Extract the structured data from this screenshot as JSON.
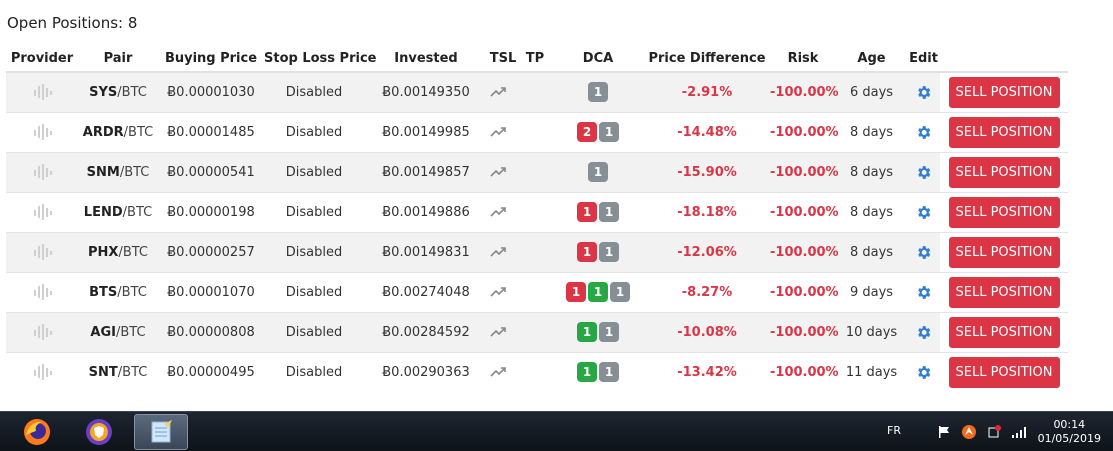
{
  "page": {
    "heading": "Open Positions: 8"
  },
  "table": {
    "headers": {
      "provider": "Provider",
      "pair": "Pair",
      "buying_price": "Buying Price",
      "stop_loss": "Stop Loss Price",
      "invested": "Invested",
      "tsl": "TSL",
      "tp": "TP",
      "dca": "DCA",
      "price_diff": "Price Difference",
      "risk": "Risk",
      "age": "Age",
      "edit": "Edit"
    },
    "sell_label": "SELL POSITION",
    "rows": [
      {
        "base": "SYS",
        "quote": "/BTC",
        "buying_price": "Ƀ0.00001030",
        "stop_loss": "Disabled",
        "invested": "Ƀ0.00149350",
        "dca": [
          {
            "text": "1",
            "color": "gray"
          }
        ],
        "price_diff": "-2.91%",
        "risk": "-100.00%",
        "age": "6 days"
      },
      {
        "base": "ARDR",
        "quote": "/BTC",
        "buying_price": "Ƀ0.00001485",
        "stop_loss": "Disabled",
        "invested": "Ƀ0.00149985",
        "dca": [
          {
            "text": "2",
            "color": "red"
          },
          {
            "text": "1",
            "color": "gray"
          }
        ],
        "price_diff": "-14.48%",
        "risk": "-100.00%",
        "age": "8 days"
      },
      {
        "base": "SNM",
        "quote": "/BTC",
        "buying_price": "Ƀ0.00000541",
        "stop_loss": "Disabled",
        "invested": "Ƀ0.00149857",
        "dca": [
          {
            "text": "1",
            "color": "gray"
          }
        ],
        "price_diff": "-15.90%",
        "risk": "-100.00%",
        "age": "8 days"
      },
      {
        "base": "LEND",
        "quote": "/BTC",
        "buying_price": "Ƀ0.00000198",
        "stop_loss": "Disabled",
        "invested": "Ƀ0.00149886",
        "dca": [
          {
            "text": "1",
            "color": "red"
          },
          {
            "text": "1",
            "color": "gray"
          }
        ],
        "price_diff": "-18.18%",
        "risk": "-100.00%",
        "age": "8 days"
      },
      {
        "base": "PHX",
        "quote": "/BTC",
        "buying_price": "Ƀ0.00000257",
        "stop_loss": "Disabled",
        "invested": "Ƀ0.00149831",
        "dca": [
          {
            "text": "1",
            "color": "red"
          },
          {
            "text": "1",
            "color": "gray"
          }
        ],
        "price_diff": "-12.06%",
        "risk": "-100.00%",
        "age": "8 days"
      },
      {
        "base": "BTS",
        "quote": "/BTC",
        "buying_price": "Ƀ0.00001070",
        "stop_loss": "Disabled",
        "invested": "Ƀ0.00274048",
        "dca": [
          {
            "text": "1",
            "color": "red"
          },
          {
            "text": "1",
            "color": "green"
          },
          {
            "text": "1",
            "color": "gray"
          }
        ],
        "price_diff": "-8.27%",
        "risk": "-100.00%",
        "age": "9 days"
      },
      {
        "base": "AGI",
        "quote": "/BTC",
        "buying_price": "Ƀ0.00000808",
        "stop_loss": "Disabled",
        "invested": "Ƀ0.00284592",
        "dca": [
          {
            "text": "1",
            "color": "green"
          },
          {
            "text": "1",
            "color": "gray"
          }
        ],
        "price_diff": "-10.08%",
        "risk": "-100.00%",
        "age": "10 days"
      },
      {
        "base": "SNT",
        "quote": "/BTC",
        "buying_price": "Ƀ0.00000495",
        "stop_loss": "Disabled",
        "invested": "Ƀ0.00290363",
        "dca": [
          {
            "text": "1",
            "color": "green"
          },
          {
            "text": "1",
            "color": "gray"
          }
        ],
        "price_diff": "-13.42%",
        "risk": "-100.00%",
        "age": "11 days"
      }
    ]
  },
  "colors": {
    "danger": "#dc3545",
    "success": "#28a745",
    "secondary": "#868e96",
    "gear": "#2f7fd6"
  },
  "icons": {
    "provider": "provider-signal-icon",
    "tsl": "trend-up-icon",
    "edit": "gear-icon"
  },
  "taskbar": {
    "apps": [
      "firefox-icon",
      "browser-shield-icon",
      "notepad-icon"
    ],
    "lang": "FR",
    "time": "00:14",
    "date": "01/05/2019"
  }
}
